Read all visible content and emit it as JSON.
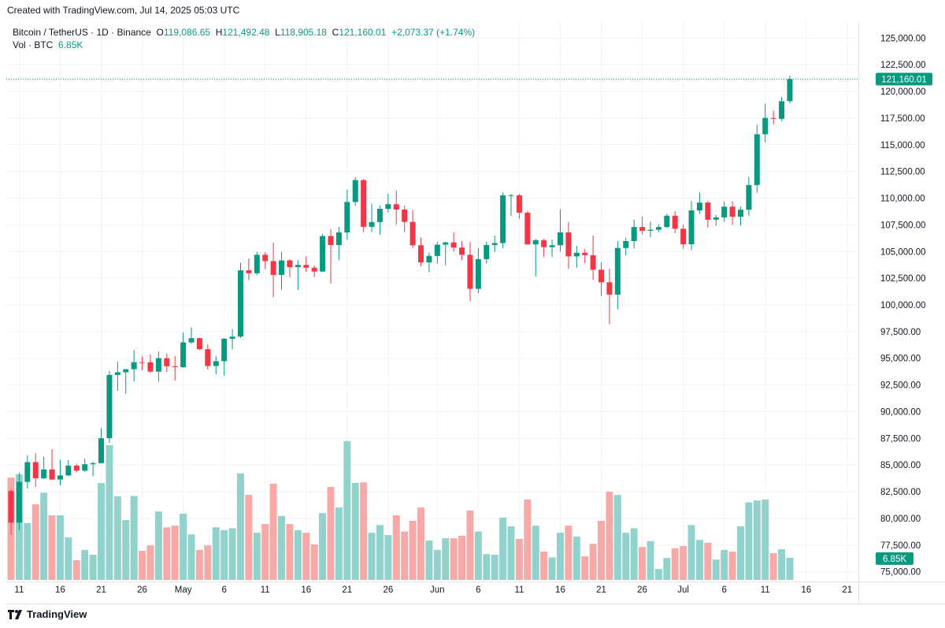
{
  "header": {
    "created": "Created with TradingView.com, Jul 14, 2025 05:03 UTC"
  },
  "legend": {
    "symbol": "Bitcoin / TetherUS · 1D · Binance",
    "o_label": "O",
    "o": "119,086.65",
    "h_label": "H",
    "h": "121,492.48",
    "l_label": "L",
    "l": "118,905.18",
    "c_label": "C",
    "c": "121,160.01",
    "change": "+2,073.37 (+1.74%)",
    "vol_label": "Vol · BTC",
    "vol": "6.85K"
  },
  "footer": {
    "brand": "TradingView"
  },
  "colors": {
    "up": "#089981",
    "down": "#f23645",
    "vol_up": "#92d2cc",
    "vol_down": "#f7a9a7"
  },
  "chart_data": {
    "type": "candlestick",
    "title": "Bitcoin / TetherUS · 1D · Binance",
    "ylim": [
      74000,
      126500
    ],
    "y_ticks": [
      "75,000.00",
      "77,500.00",
      "80,000.00",
      "82,500.00",
      "85,000.00",
      "87,500.00",
      "90,000.00",
      "92,500.00",
      "95,000.00",
      "97,500.00",
      "100,000.00",
      "102,500.00",
      "105,000.00",
      "107,500.00",
      "110,000.00",
      "112,500.00",
      "115,000.00",
      "117,500.00",
      "120,000.00",
      "122,500.00",
      "125,000.00"
    ],
    "y_tick_values": [
      75000,
      77500,
      80000,
      82500,
      85000,
      87500,
      90000,
      92500,
      95000,
      97500,
      100000,
      102500,
      105000,
      107500,
      110000,
      112500,
      115000,
      117500,
      120000,
      122500,
      125000
    ],
    "x_ticks": [
      {
        "label": "11",
        "day": 1
      },
      {
        "label": "16",
        "day": 6
      },
      {
        "label": "21",
        "day": 11
      },
      {
        "label": "26",
        "day": 16
      },
      {
        "label": "May",
        "day": 21
      },
      {
        "label": "6",
        "day": 26
      },
      {
        "label": "11",
        "day": 31
      },
      {
        "label": "16",
        "day": 36
      },
      {
        "label": "21",
        "day": 41
      },
      {
        "label": "26",
        "day": 46
      },
      {
        "label": "Jun",
        "day": 52
      },
      {
        "label": "6",
        "day": 57
      },
      {
        "label": "11",
        "day": 62
      },
      {
        "label": "16",
        "day": 67
      },
      {
        "label": "21",
        "day": 72
      },
      {
        "label": "26",
        "day": 77
      },
      {
        "label": "Jul",
        "day": 82
      },
      {
        "label": "6",
        "day": 87
      },
      {
        "label": "11",
        "day": 92
      },
      {
        "label": "16",
        "day": 97
      },
      {
        "label": "21",
        "day": 102
      }
    ],
    "first_date": "2025-04-10",
    "last_price_label": "121,160.01",
    "last_price": 121160.01,
    "last_volume_label": "6.85K",
    "ohlc": [
      [
        82573,
        82700,
        78456,
        79607
      ],
      [
        79607,
        84300,
        78936,
        83423
      ],
      [
        83423,
        85905,
        82792,
        85276
      ],
      [
        85276,
        86100,
        82949,
        83760
      ],
      [
        83760,
        85799,
        83678,
        84591
      ],
      [
        84591,
        86496,
        83600,
        83643
      ],
      [
        83643,
        85500,
        83111,
        84030
      ],
      [
        84030,
        85470,
        83949,
        84947
      ],
      [
        84947,
        85132,
        84303,
        84474
      ],
      [
        84474,
        85597,
        84353,
        85077
      ],
      [
        85077,
        85320,
        83949,
        85179
      ],
      [
        85179,
        88460,
        85143,
        87516
      ],
      [
        87516,
        93817,
        87075,
        93442
      ],
      [
        93442,
        94696,
        91935,
        93691
      ],
      [
        93691,
        94000,
        91660,
        93980
      ],
      [
        93980,
        95758,
        92855,
        94638
      ],
      [
        94638,
        95199,
        93870,
        94630
      ],
      [
        94630,
        95369,
        93602,
        93754
      ],
      [
        93754,
        95630,
        92800,
        95012
      ],
      [
        95012,
        95461,
        93727,
        94256
      ],
      [
        94256,
        95228,
        92910,
        94172
      ],
      [
        94172,
        97437,
        94111,
        96489
      ],
      [
        96489,
        97895,
        96350,
        96887
      ],
      [
        96887,
        96935,
        95753,
        95856
      ],
      [
        95856,
        96304,
        93945,
        94277
      ],
      [
        94277,
        95199,
        93514,
        94733
      ],
      [
        94733,
        96920,
        93377,
        96834
      ],
      [
        96834,
        97732,
        95840,
        97032
      ],
      [
        97032,
        103969,
        96913,
        103241
      ],
      [
        103241,
        104361,
        102315,
        102970
      ],
      [
        102970,
        104978,
        102818,
        104696
      ],
      [
        104696,
        104937,
        103345,
        104106
      ],
      [
        104106,
        105819,
        100718,
        102812
      ],
      [
        102812,
        104976,
        101429,
        104169
      ],
      [
        104169,
        104300,
        102602,
        103539
      ],
      [
        103539,
        104192,
        101383,
        103744
      ],
      [
        103744,
        104550,
        103100,
        103489
      ],
      [
        103489,
        103709,
        102612,
        103126
      ],
      [
        103126,
        106660,
        103105,
        106454
      ],
      [
        106454,
        107108,
        102000,
        105606
      ],
      [
        105606,
        107320,
        104184,
        106791
      ],
      [
        106791,
        110797,
        106100,
        109643
      ],
      [
        109643,
        111980,
        109285,
        111696
      ],
      [
        111696,
        111800,
        106800,
        107318
      ],
      [
        107318,
        109488,
        106831,
        107761
      ],
      [
        107761,
        109313,
        106600,
        109004
      ],
      [
        109004,
        110422,
        108670,
        109434
      ],
      [
        109434,
        110718,
        107516,
        108938
      ],
      [
        108938,
        109298,
        106812,
        107781
      ],
      [
        107781,
        108910,
        105322,
        105589
      ],
      [
        105589,
        106313,
        103621,
        103985
      ],
      [
        103985,
        104900,
        103068,
        104591
      ],
      [
        104591,
        105900,
        103858,
        105642
      ],
      [
        105642,
        105935,
        103703,
        105857
      ],
      [
        105857,
        106813,
        105000,
        105376
      ],
      [
        105376,
        105999,
        104191,
        104696
      ],
      [
        104696,
        105909,
        100372,
        101508
      ],
      [
        101508,
        105333,
        101095,
        104288
      ],
      [
        104288,
        105900,
        103880,
        105615
      ],
      [
        105615,
        106488,
        104964,
        105793
      ],
      [
        105793,
        110530,
        105318,
        110263
      ],
      [
        110263,
        110400,
        108331,
        110274
      ],
      [
        110274,
        110384,
        108086,
        108645
      ],
      [
        108645,
        108813,
        105671,
        105671
      ],
      [
        105671,
        106182,
        102664,
        106066
      ],
      [
        106066,
        106210,
        104473,
        105414
      ],
      [
        105414,
        106128,
        104494,
        105594
      ],
      [
        105594,
        108952,
        104990,
        106794
      ],
      [
        106794,
        107771,
        103371,
        104551
      ],
      [
        104551,
        105550,
        103500,
        104886
      ],
      [
        104886,
        105226,
        103900,
        104658
      ],
      [
        104658,
        106524,
        102345,
        103297
      ],
      [
        103297,
        104000,
        100837,
        102120
      ],
      [
        102120,
        103400,
        98200,
        100963
      ],
      [
        100963,
        106000,
        99588,
        105334
      ],
      [
        105334,
        106300,
        104622,
        105978
      ],
      [
        105978,
        108000,
        105284,
        107296
      ],
      [
        107296,
        108272,
        106590,
        106947
      ],
      [
        106947,
        107800,
        106350,
        107047
      ],
      [
        107047,
        107540,
        106812,
        107296
      ],
      [
        107296,
        108531,
        107206,
        108356
      ],
      [
        108356,
        108789,
        106733,
        107135
      ],
      [
        107135,
        107540,
        105250,
        105681
      ],
      [
        105681,
        109730,
        105129,
        108850
      ],
      [
        108850,
        110529,
        108528,
        109584
      ],
      [
        109584,
        109767,
        107245,
        107984
      ],
      [
        107984,
        108420,
        107429,
        108198
      ],
      [
        108198,
        109700,
        107800,
        109203
      ],
      [
        109203,
        109700,
        107500,
        108262
      ],
      [
        108262,
        109200,
        107429,
        108922
      ],
      [
        108922,
        111999,
        108324,
        111233
      ],
      [
        111233,
        116868,
        110500,
        115987
      ],
      [
        115987,
        118869,
        115222,
        117516
      ],
      [
        117516,
        118200,
        116900,
        117435
      ],
      [
        117435,
        119488,
        117224,
        119086
      ],
      [
        119086.65,
        121492.48,
        118905.18,
        121160.01
      ]
    ],
    "volume_k": [
      31.7,
      32.7,
      17.6,
      23.4,
      27,
      20,
      20,
      13.2,
      6.1,
      9.3,
      7.8,
      30,
      41.7,
      25.9,
      18.5,
      26,
      9,
      10.7,
      21.2,
      16.3,
      16.8,
      20.5,
      14.1,
      9.3,
      10.7,
      16.3,
      15.4,
      16,
      33,
      26.3,
      14.6,
      17.3,
      29.8,
      19.8,
      17.3,
      15.4,
      14.6,
      11,
      20.7,
      28.8,
      22.4,
      43,
      30,
      30.2,
      14.6,
      17,
      13.9,
      20,
      15,
      18.3,
      22.4,
      12.2,
      9.3,
      12.9,
      12.9,
      13.7,
      21.5,
      15,
      8,
      7.8,
      19.3,
      16.6,
      12.7,
      24.9,
      16.8,
      8.8,
      7,
      14.6,
      16.8,
      13.4,
      7.3,
      11.2,
      18.3,
      27.3,
      26.3,
      14.6,
      16,
      10.2,
      12,
      3.4,
      6.8,
      9.8,
      10.5,
      17,
      12.4,
      11.5,
      6.3,
      9.3,
      8.8,
      16.6,
      24,
      24.6,
      24.9,
      8.3,
      9.5,
      6.85
    ]
  }
}
